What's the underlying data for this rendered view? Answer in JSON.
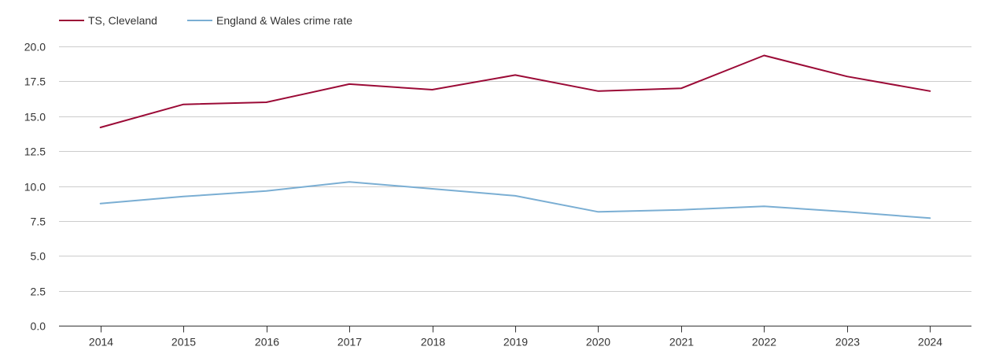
{
  "chart_data": {
    "type": "line",
    "title": "",
    "xlabel": "",
    "ylabel": "",
    "categories": [
      "2014",
      "2015",
      "2016",
      "2017",
      "2018",
      "2019",
      "2020",
      "2021",
      "2022",
      "2023",
      "2024"
    ],
    "ylim": [
      0,
      20
    ],
    "yticks": [
      "0.0",
      "2.5",
      "5.0",
      "7.5",
      "10.0",
      "12.5",
      "15.0",
      "17.5",
      "20.0"
    ],
    "grid": true,
    "legend_position": "top-left",
    "series": [
      {
        "name": "TS, Cleveland",
        "color": "#9b0a36",
        "values": [
          14.2,
          15.85,
          16.0,
          17.3,
          16.9,
          17.95,
          16.8,
          17.0,
          19.35,
          17.85,
          16.8
        ]
      },
      {
        "name": "England & Wales crime rate",
        "color": "#7aaed3",
        "values": [
          8.75,
          9.25,
          9.65,
          10.3,
          9.8,
          9.3,
          8.15,
          8.3,
          8.55,
          8.15,
          7.7
        ]
      }
    ]
  }
}
